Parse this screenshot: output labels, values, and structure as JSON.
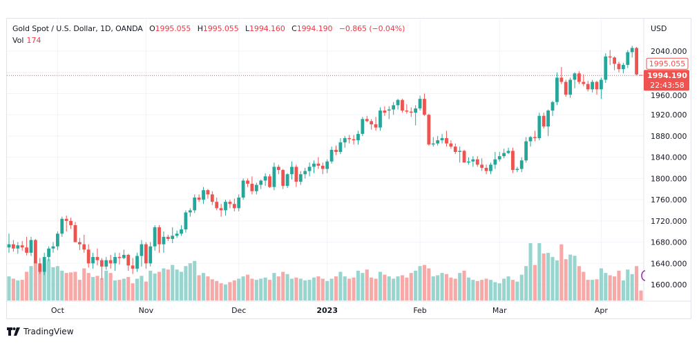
{
  "header": {
    "symbol_title": "Gold Spot / U.S. Dollar, 1D, OANDA",
    "open_label": "O",
    "open_value": "1995.055",
    "high_label": "H",
    "high_value": "1995.055",
    "low_label": "L",
    "low_value": "1994.160",
    "close_label": "C",
    "close_value": "1994.190",
    "change": "−0.865 (−0.04%)",
    "volume_label": "Vol",
    "volume_value": "174",
    "currency": "USD"
  },
  "price_tags": {
    "open_price": "1995.055",
    "last_price": "1994.190",
    "countdown": "22:43:58"
  },
  "branding": {
    "logo_text": "TradingView"
  },
  "colors": {
    "up": "#26a69a",
    "down": "#ef5350",
    "up_volume": "#99d5cf",
    "down_volume": "#f7a9a7",
    "grid": "#f0f3fa",
    "text": "#131722"
  },
  "chart_data": {
    "type": "candlestick",
    "title": "Gold Spot / U.S. Dollar, 1D, OANDA",
    "ylabel": "USD",
    "ylim": [
      1570,
      2070
    ],
    "y_ticks": [
      "1600.000",
      "1640.000",
      "1680.000",
      "1720.000",
      "1760.000",
      "1800.000",
      "1840.000",
      "1880.000",
      "1920.000",
      "1960.000",
      "2040.000"
    ],
    "x_ticks": [
      {
        "label": "Oct",
        "index": 11
      },
      {
        "label": "Nov",
        "index": 31
      },
      {
        "label": "Dec",
        "index": 52
      },
      {
        "label": "2023",
        "index": 72
      },
      {
        "label": "Feb",
        "index": 93
      },
      {
        "label": "Mar",
        "index": 111
      },
      {
        "label": "Apr",
        "index": 134
      }
    ],
    "grid": true,
    "volume_max": 1000,
    "candles": [
      [
        1670,
        1696,
        1660,
        1676,
        420
      ],
      [
        1676,
        1684,
        1662,
        1668,
        380
      ],
      [
        1668,
        1680,
        1658,
        1674,
        350
      ],
      [
        1674,
        1682,
        1664,
        1670,
        360
      ],
      [
        1670,
        1690,
        1655,
        1660,
        500
      ],
      [
        1660,
        1690,
        1654,
        1684,
        600
      ],
      [
        1684,
        1686,
        1640,
        1640,
        680
      ],
      [
        1640,
        1650,
        1620,
        1624,
        610
      ],
      [
        1624,
        1660,
        1618,
        1652,
        640
      ],
      [
        1652,
        1672,
        1645,
        1668,
        720
      ],
      [
        1668,
        1680,
        1660,
        1672,
        580
      ],
      [
        1672,
        1700,
        1665,
        1696,
        600
      ],
      [
        1696,
        1728,
        1690,
        1724,
        520
      ],
      [
        1724,
        1730,
        1700,
        1720,
        480
      ],
      [
        1720,
        1726,
        1705,
        1712,
        490
      ],
      [
        1712,
        1718,
        1680,
        1680,
        500
      ],
      [
        1680,
        1688,
        1665,
        1676,
        360
      ],
      [
        1676,
        1694,
        1660,
        1666,
        560
      ],
      [
        1666,
        1676,
        1632,
        1640,
        480
      ],
      [
        1640,
        1660,
        1630,
        1652,
        410
      ],
      [
        1652,
        1668,
        1636,
        1646,
        430
      ],
      [
        1646,
        1650,
        1610,
        1634,
        390
      ],
      [
        1634,
        1652,
        1628,
        1646,
        520
      ],
      [
        1646,
        1656,
        1630,
        1640,
        480
      ],
      [
        1640,
        1660,
        1626,
        1652,
        350
      ],
      [
        1652,
        1660,
        1638,
        1650,
        360
      ],
      [
        1650,
        1666,
        1648,
        1656,
        380
      ],
      [
        1656,
        1658,
        1626,
        1636,
        410
      ],
      [
        1636,
        1650,
        1620,
        1630,
        300
      ],
      [
        1630,
        1660,
        1624,
        1654,
        380
      ],
      [
        1654,
        1684,
        1634,
        1676,
        430
      ],
      [
        1676,
        1680,
        1630,
        1640,
        330
      ],
      [
        1640,
        1680,
        1634,
        1672,
        520
      ],
      [
        1672,
        1712,
        1664,
        1708,
        470
      ],
      [
        1708,
        1712,
        1660,
        1676,
        500
      ],
      [
        1676,
        1700,
        1660,
        1690,
        560
      ],
      [
        1690,
        1694,
        1682,
        1686,
        540
      ],
      [
        1686,
        1708,
        1678,
        1692,
        620
      ],
      [
        1692,
        1702,
        1688,
        1696,
        540
      ],
      [
        1696,
        1712,
        1692,
        1704,
        500
      ],
      [
        1704,
        1740,
        1698,
        1736,
        600
      ],
      [
        1736,
        1744,
        1728,
        1740,
        650
      ],
      [
        1740,
        1770,
        1735,
        1764,
        690
      ],
      [
        1764,
        1770,
        1756,
        1760,
        440
      ],
      [
        1760,
        1784,
        1752,
        1778,
        480
      ],
      [
        1778,
        1780,
        1762,
        1770,
        420
      ],
      [
        1770,
        1776,
        1750,
        1756,
        370
      ],
      [
        1756,
        1764,
        1740,
        1744,
        340
      ],
      [
        1744,
        1752,
        1728,
        1740,
        300
      ],
      [
        1740,
        1760,
        1730,
        1756,
        280
      ],
      [
        1756,
        1760,
        1744,
        1752,
        320
      ],
      [
        1752,
        1762,
        1738,
        1744,
        350
      ],
      [
        1744,
        1770,
        1738,
        1764,
        380
      ],
      [
        1764,
        1800,
        1760,
        1796,
        420
      ],
      [
        1796,
        1800,
        1784,
        1790,
        450
      ],
      [
        1790,
        1804,
        1770,
        1776,
        380
      ],
      [
        1776,
        1792,
        1770,
        1788,
        360
      ],
      [
        1788,
        1798,
        1780,
        1796,
        380
      ],
      [
        1796,
        1810,
        1786,
        1804,
        400
      ],
      [
        1804,
        1808,
        1782,
        1784,
        360
      ],
      [
        1784,
        1830,
        1778,
        1822,
        480
      ],
      [
        1822,
        1826,
        1808,
        1816,
        420
      ],
      [
        1816,
        1818,
        1780,
        1786,
        500
      ],
      [
        1786,
        1810,
        1782,
        1808,
        460
      ],
      [
        1808,
        1832,
        1798,
        1822,
        380
      ],
      [
        1822,
        1826,
        1784,
        1794,
        400
      ],
      [
        1794,
        1814,
        1788,
        1808,
        380
      ],
      [
        1808,
        1820,
        1800,
        1814,
        350
      ],
      [
        1814,
        1830,
        1804,
        1822,
        360
      ],
      [
        1822,
        1834,
        1810,
        1828,
        400
      ],
      [
        1828,
        1840,
        1818,
        1824,
        420
      ],
      [
        1824,
        1830,
        1808,
        1818,
        380
      ],
      [
        1818,
        1836,
        1810,
        1832,
        340
      ],
      [
        1832,
        1860,
        1828,
        1854,
        380
      ],
      [
        1854,
        1862,
        1844,
        1850,
        420
      ],
      [
        1850,
        1876,
        1846,
        1868,
        500
      ],
      [
        1868,
        1880,
        1858,
        1876,
        420
      ],
      [
        1876,
        1882,
        1866,
        1874,
        380
      ],
      [
        1874,
        1882,
        1864,
        1872,
        400
      ],
      [
        1872,
        1890,
        1864,
        1884,
        520
      ],
      [
        1884,
        1916,
        1880,
        1912,
        480
      ],
      [
        1912,
        1918,
        1906,
        1908,
        540
      ],
      [
        1908,
        1912,
        1892,
        1902,
        400
      ],
      [
        1902,
        1916,
        1890,
        1896,
        380
      ],
      [
        1896,
        1934,
        1890,
        1928,
        500
      ],
      [
        1928,
        1936,
        1918,
        1924,
        450
      ],
      [
        1928,
        1936,
        1912,
        1930,
        420
      ],
      [
        1930,
        1944,
        1920,
        1938,
        380
      ],
      [
        1938,
        1950,
        1930,
        1948,
        420
      ],
      [
        1948,
        1950,
        1924,
        1928,
        440
      ],
      [
        1928,
        1940,
        1922,
        1926,
        400
      ],
      [
        1926,
        1934,
        1916,
        1924,
        480
      ],
      [
        1924,
        1938,
        1900,
        1932,
        520
      ],
      [
        1932,
        1956,
        1928,
        1950,
        600
      ],
      [
        1950,
        1960,
        1918,
        1920,
        620
      ],
      [
        1920,
        1922,
        1862,
        1864,
        560
      ],
      [
        1864,
        1878,
        1860,
        1866,
        420
      ],
      [
        1866,
        1880,
        1862,
        1872,
        440
      ],
      [
        1872,
        1884,
        1866,
        1876,
        480
      ],
      [
        1876,
        1890,
        1860,
        1866,
        460
      ],
      [
        1866,
        1872,
        1856,
        1860,
        400
      ],
      [
        1860,
        1866,
        1846,
        1850,
        380
      ],
      [
        1850,
        1860,
        1830,
        1852,
        480
      ],
      [
        1852,
        1854,
        1830,
        1830,
        520
      ],
      [
        1830,
        1840,
        1826,
        1832,
        400
      ],
      [
        1832,
        1842,
        1822,
        1836,
        360
      ],
      [
        1836,
        1842,
        1822,
        1826,
        340
      ],
      [
        1826,
        1838,
        1814,
        1820,
        360
      ],
      [
        1820,
        1826,
        1808,
        1814,
        380
      ],
      [
        1814,
        1830,
        1808,
        1826,
        360
      ],
      [
        1826,
        1850,
        1818,
        1836,
        320
      ],
      [
        1836,
        1850,
        1832,
        1842,
        300
      ],
      [
        1842,
        1856,
        1838,
        1848,
        380
      ],
      [
        1848,
        1858,
        1846,
        1852,
        420
      ],
      [
        1852,
        1858,
        1810,
        1816,
        360
      ],
      [
        1816,
        1822,
        1812,
        1818,
        330
      ],
      [
        1818,
        1840,
        1812,
        1834,
        450
      ],
      [
        1834,
        1878,
        1830,
        1870,
        600
      ],
      [
        1870,
        1880,
        1860,
        1878,
        1000
      ],
      [
        1878,
        1890,
        1870,
        1876,
        620
      ],
      [
        1876,
        1924,
        1872,
        1918,
        1000
      ],
      [
        1918,
        1924,
        1894,
        1898,
        820
      ],
      [
        1898,
        1930,
        1880,
        1928,
        830
      ],
      [
        1928,
        1946,
        1918,
        1944,
        760
      ],
      [
        1944,
        2000,
        1938,
        1990,
        700
      ],
      [
        1990,
        2010,
        1978,
        1982,
        980
      ],
      [
        1982,
        1986,
        1954,
        1958,
        720
      ],
      [
        1958,
        1990,
        1952,
        1986,
        800
      ],
      [
        1986,
        2000,
        1970,
        1998,
        780
      ],
      [
        1998,
        2002,
        1978,
        1982,
        600
      ],
      [
        1982,
        1996,
        1974,
        1978,
        500
      ],
      [
        1978,
        1984,
        1964,
        1968,
        360
      ],
      [
        1968,
        1986,
        1962,
        1982,
        360
      ],
      [
        1982,
        1984,
        1958,
        1968,
        370
      ],
      [
        1968,
        1990,
        1950,
        1986,
        560
      ],
      [
        1986,
        2036,
        1980,
        2030,
        480
      ],
      [
        2030,
        2042,
        2014,
        2028,
        440
      ],
      [
        2028,
        2030,
        2004,
        2016,
        420
      ],
      [
        2016,
        2020,
        2000,
        2006,
        520
      ],
      [
        2006,
        2018,
        1998,
        2014,
        350
      ],
      [
        2014,
        2042,
        2008,
        2038,
        540
      ],
      [
        2038,
        2050,
        2028,
        2046,
        460
      ],
      [
        2046,
        2048,
        1994,
        1996,
        600
      ],
      [
        1995.055,
        1995.055,
        1994.16,
        1994.19,
        174
      ]
    ]
  }
}
